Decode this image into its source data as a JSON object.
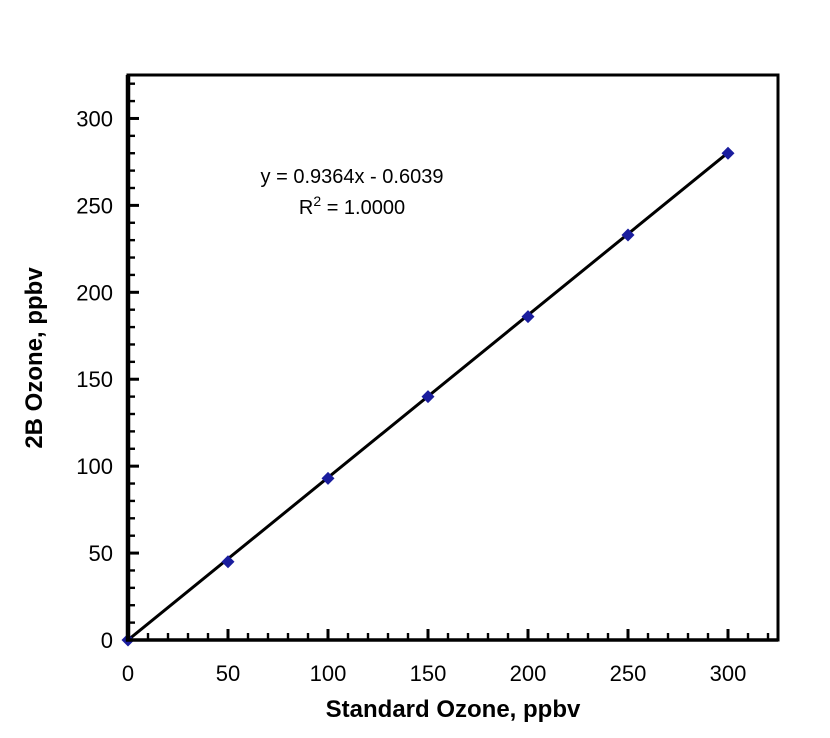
{
  "figure": {
    "background_color": "#ffffff",
    "axis_color": "#000000",
    "text_color": "#000000"
  },
  "chart_data": {
    "type": "scatter",
    "title": "",
    "xlabel": "Standard Ozone, ppbv",
    "ylabel": "2B Ozone, ppbv",
    "x": [
      0,
      50,
      100,
      150,
      200,
      250,
      300
    ],
    "y": [
      0,
      45,
      93,
      140,
      186,
      233,
      280
    ],
    "xlim": [
      0,
      325
    ],
    "ylim": [
      0,
      325
    ],
    "x_major_ticks": [
      0,
      50,
      100,
      150,
      200,
      250,
      300
    ],
    "y_major_ticks": [
      0,
      50,
      100,
      150,
      200,
      250,
      300
    ],
    "minor_tick_step": 10,
    "minor_tick_max": 320,
    "grid": false,
    "legend": "none",
    "marker": {
      "shape": "diamond",
      "color": "#1a1d9e",
      "size": 13
    },
    "trendline": {
      "slope": 0.9364,
      "intercept": -0.6039,
      "color": "#000000",
      "width": 3
    },
    "annotation": {
      "line1": "y = 0.9364x - 0.6039",
      "r_base": "R",
      "r_sup": "2",
      "r_rest": " = 1.0000"
    }
  }
}
